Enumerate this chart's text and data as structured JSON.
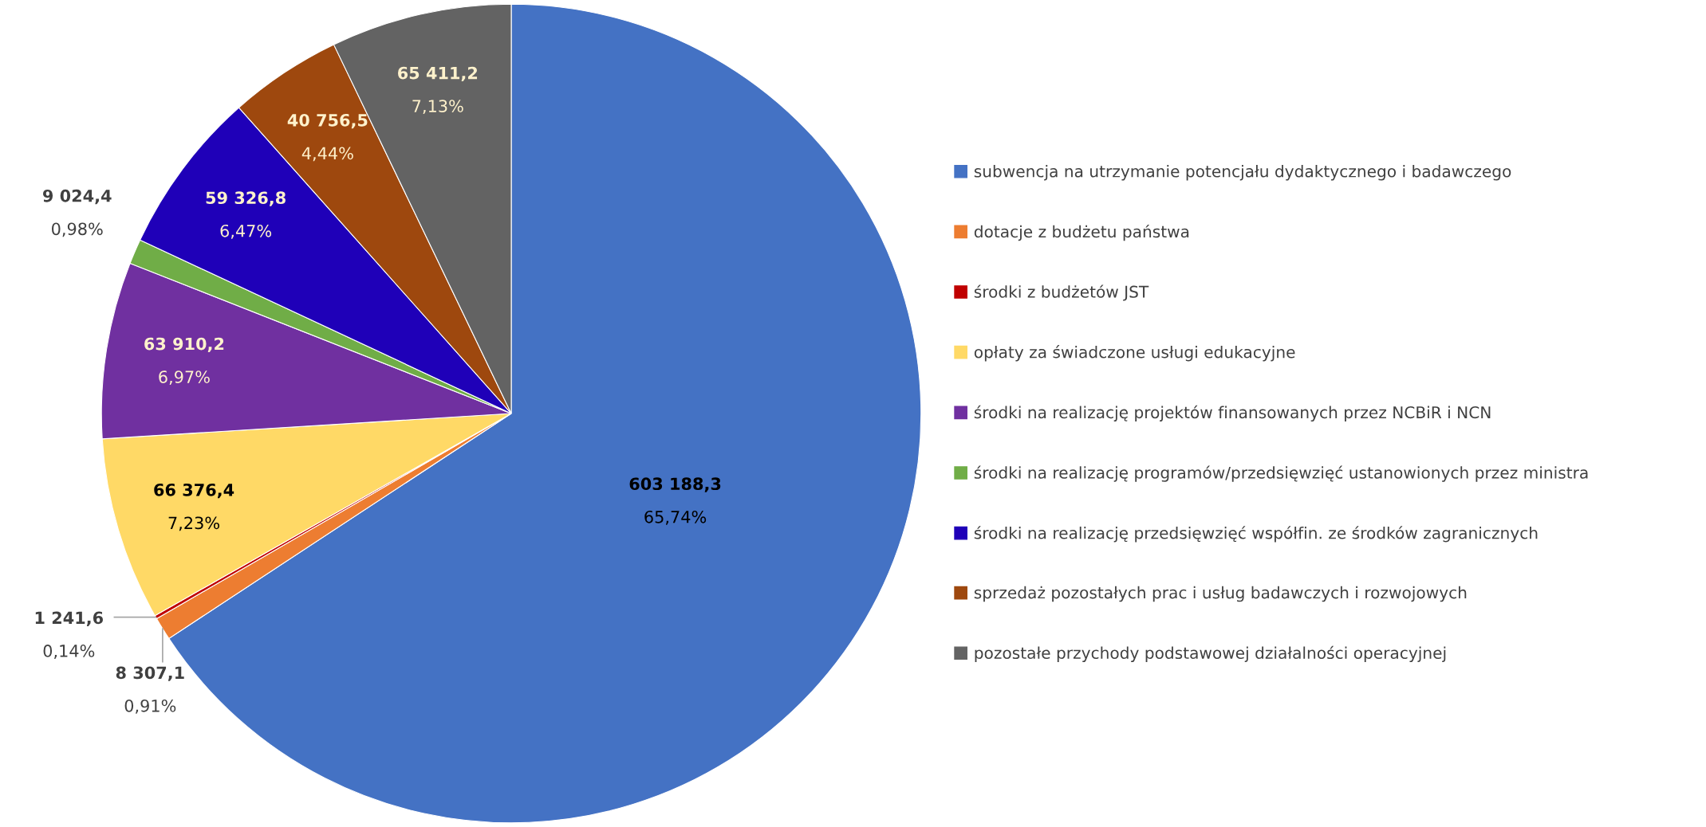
{
  "chart_data": {
    "type": "pie",
    "categories": [
      "subwencja na utrzymanie potencjału dydaktycznego i badawczego",
      "dotacje z budżetu państwa",
      "środki z budżetów JST",
      "opłaty za świadczone usługi edukacyjne",
      "środki na realizację projektów finansowanych przez NCBiR i NCN",
      "środki na realizację programów/przedsięwzięć ustanowionych przez ministra",
      "środki na realizację przedsięwzięć współfin. ze środków zagranicznych",
      "sprzedaż pozostałych prac i usług badawczych i rozwojowych",
      "pozostałe przychody podstawowej działalności operacyjnej"
    ],
    "values": [
      603188.3,
      8307.1,
      1241.6,
      66376.4,
      63910.2,
      9024.4,
      59326.8,
      40756.5,
      65411.2
    ],
    "colors": [
      "#4472c4",
      "#ed7d31",
      "#c00000",
      "#ffd966",
      "#7030a0",
      "#70ad47",
      "#1f00b8",
      "#9e480e",
      "#636363"
    ],
    "value_labels": [
      "603 188,3",
      "8 307,1",
      "1 241,6",
      "66 376,4",
      "63 910,2",
      "9 024,4",
      "59 326,8",
      "40 756,5",
      "65 411,2"
    ],
    "annotations": [
      "65,74%",
      "0,91%",
      "0,14%",
      "7,23%",
      "6,97%",
      "0,98%",
      "6,47%",
      "4,44%",
      "7,13%"
    ],
    "legend": "right"
  }
}
